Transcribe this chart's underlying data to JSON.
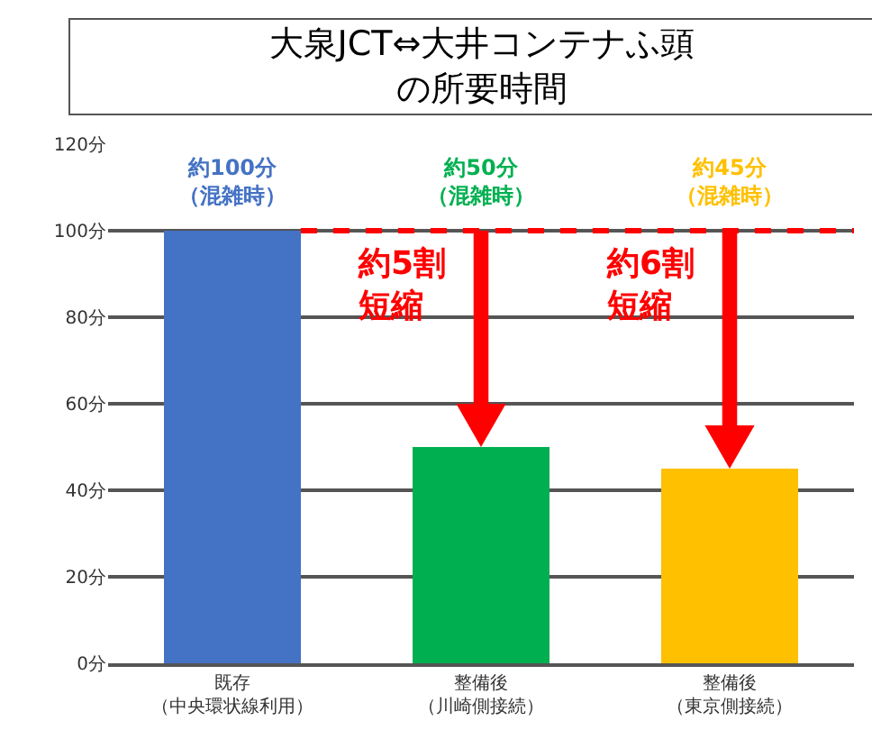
{
  "chart_data": {
    "type": "bar",
    "title": "大泉JCT⇔大井コンテナふ頭の所要時間",
    "categories": [
      "既存（中央環状線利用）",
      "整備後（川崎側接続）",
      "整備後（東京側接続）"
    ],
    "values": [
      100,
      50,
      45
    ],
    "colors": [
      "#4472c4",
      "#00b050",
      "#ffc000"
    ],
    "ylim": [
      0,
      120
    ],
    "yticks": [
      {
        "value": 0,
        "label": "0分"
      },
      {
        "value": 20,
        "label": "20分"
      },
      {
        "value": 40,
        "label": "40分"
      },
      {
        "value": 60,
        "label": "60分"
      },
      {
        "value": 80,
        "label": "80分"
      },
      {
        "value": 100,
        "label": "100分"
      },
      {
        "value": 120,
        "label": "120分"
      }
    ],
    "grid": "y",
    "ref_lines": [
      {
        "axis": "y",
        "value": 100,
        "color": "#ff0000",
        "line_style": "dashed"
      }
    ],
    "annotations": [
      "約100分（混雑時）",
      "約50分（混雑時）",
      "約45分（混雑時）",
      "約5割短縮",
      "約6割短縮"
    ]
  }
}
